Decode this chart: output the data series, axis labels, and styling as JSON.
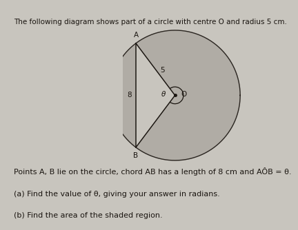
{
  "page_bg": "#c8c5be",
  "shaded_color": "#b0aca5",
  "circle_edge_color": "#2a2520",
  "line_color": "#1a1510",
  "font_color": "#1a1510",
  "title_text": "The following diagram shows part of a circle with centre O and radius 5 cm.",
  "label_A": "A",
  "label_B": "B",
  "label_O": "O",
  "label_5": "5",
  "label_8": "8",
  "label_theta": "θ",
  "line1": "Points A, B lie on the circle, chord AB has a length of 8 cm and AÔB = θ.",
  "line2": "(a) Find the value of θ, giving your answer in radians.",
  "line3": "(b) Find the area of the shaded region.",
  "title_fontsize": 7.5,
  "label_fontsize": 7.5,
  "text_fontsize": 8.0
}
